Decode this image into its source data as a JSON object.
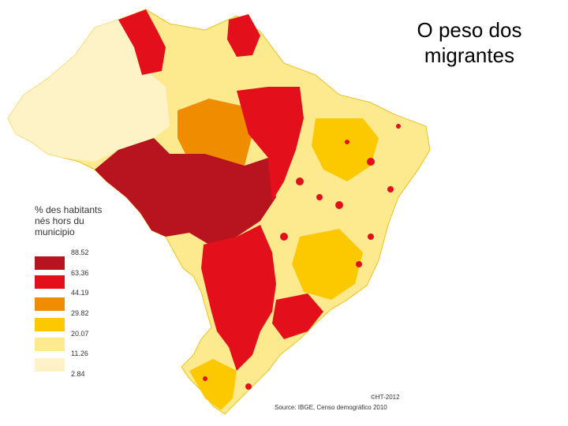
{
  "title": {
    "line1": "O peso dos",
    "line2": "migrantes"
  },
  "legend": {
    "title_line1": "% des habitants",
    "title_line2": "nés hors du",
    "title_line3": "municipio",
    "ticks": [
      "88.52",
      "63.36",
      "44.19",
      "29.82",
      "20.07",
      "11.26",
      "2.84"
    ],
    "classes": [
      {
        "color": "#b8141f"
      },
      {
        "color": "#e3101c"
      },
      {
        "color": "#f08c00"
      },
      {
        "color": "#fcc800"
      },
      {
        "color": "#fde98e"
      },
      {
        "color": "#fef3c6"
      }
    ]
  },
  "credits": {
    "copyright": "©HT-2012",
    "source": "Source: IBGE, Censo demográfico 2010"
  }
}
